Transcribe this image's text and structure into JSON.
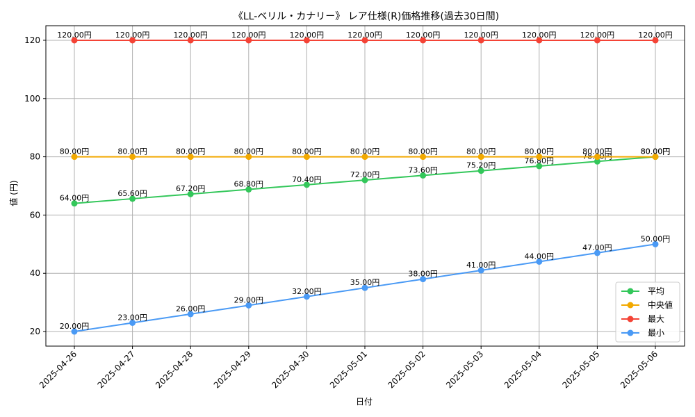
{
  "chart_data": {
    "type": "line",
    "title": "《LL-ベリル・カナリー》 レア仕様(R)価格推移(過去30日間)",
    "xlabel": "日付",
    "ylabel": "値 (円)",
    "categories": [
      "2025-04-26",
      "2025-04-27",
      "2025-04-28",
      "2025-04-29",
      "2025-04-30",
      "2025-05-01",
      "2025-05-02",
      "2025-05-03",
      "2025-05-04",
      "2025-05-05",
      "2025-05-06"
    ],
    "yticks": [
      20,
      40,
      60,
      80,
      100,
      120
    ],
    "ylim": [
      15,
      125
    ],
    "grid": true,
    "legend_position": "lower-right",
    "value_suffix": "円",
    "series": [
      {
        "name": "平均",
        "color": "#33c75a",
        "values": [
          64.0,
          65.6,
          67.2,
          68.8,
          70.4,
          72.0,
          73.6,
          75.2,
          76.8,
          78.4,
          80.0
        ]
      },
      {
        "name": "中央値",
        "color": "#f2a900",
        "values": [
          80,
          80,
          80,
          80,
          80,
          80,
          80,
          80,
          80,
          80,
          80
        ]
      },
      {
        "name": "最大",
        "color": "#f44336",
        "values": [
          120,
          120,
          120,
          120,
          120,
          120,
          120,
          120,
          120,
          120,
          120
        ]
      },
      {
        "name": "最小",
        "color": "#4a9af5",
        "values": [
          20,
          23,
          26,
          29,
          32,
          35,
          38,
          41,
          44,
          47,
          50
        ]
      }
    ]
  }
}
